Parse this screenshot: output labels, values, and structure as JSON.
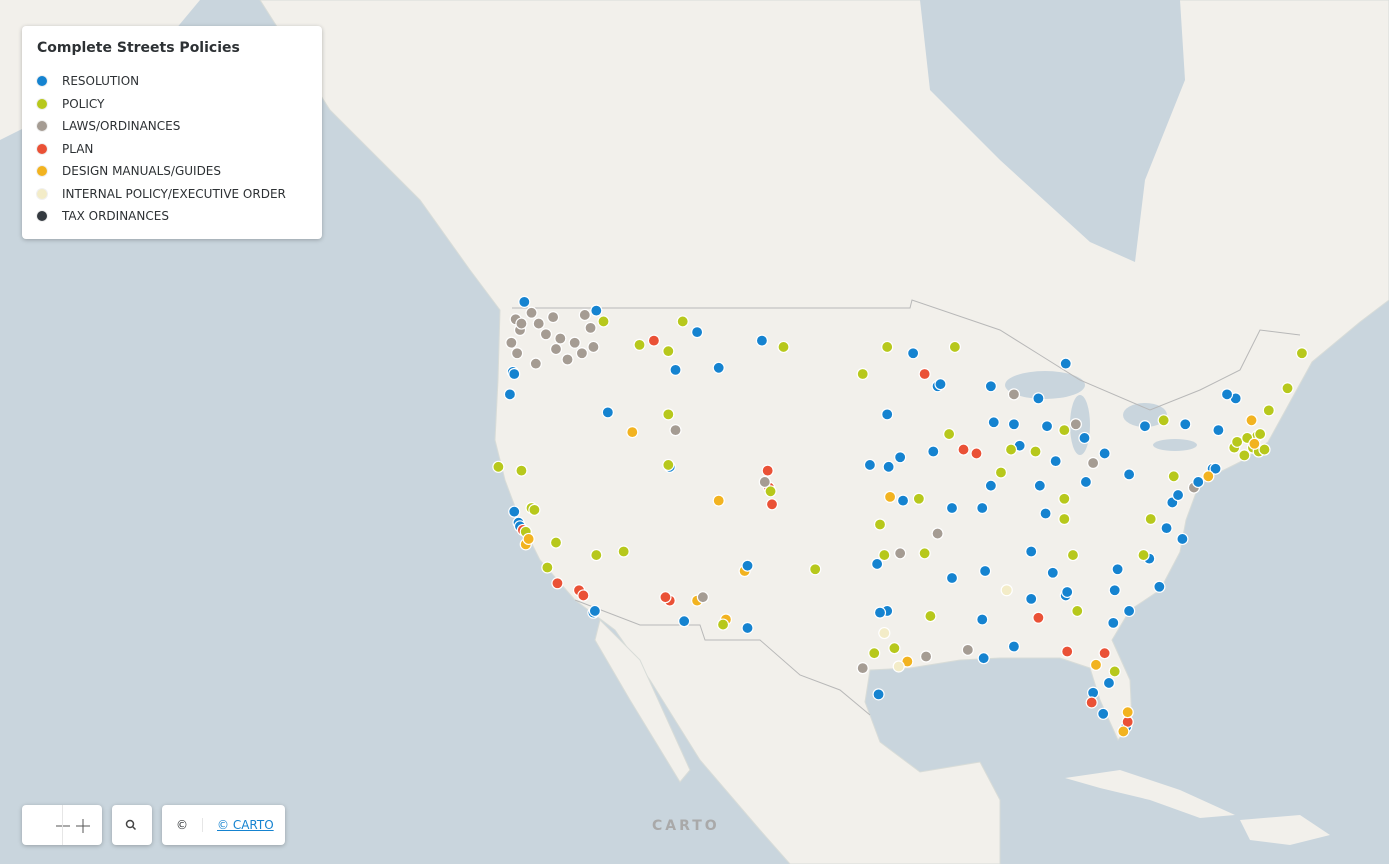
{
  "legend": {
    "title": "Complete Streets Policies",
    "items": [
      {
        "label": "RESOLUTION",
        "color": "#1583d0"
      },
      {
        "label": "POLICY",
        "color": "#b7c81c"
      },
      {
        "label": "LAWS/ORDINANCES",
        "color": "#a59c93"
      },
      {
        "label": "PLAN",
        "color": "#ea5136"
      },
      {
        "label": "DESIGN MANUALS/GUIDES",
        "color": "#f2b320"
      },
      {
        "label": "INTERNAL POLICY/EXECUTIVE ORDER",
        "color": "#f3ecc8"
      },
      {
        "label": "TAX ORDINANCES",
        "color": "#343a40"
      }
    ]
  },
  "points": [
    [
      -122.3,
      47.6,
      2
    ],
    [
      -122.6,
      48.1,
      2
    ],
    [
      -122.2,
      47.9,
      2
    ],
    [
      -121.5,
      48.4,
      2
    ],
    [
      -120.5,
      47.4,
      2
    ],
    [
      -119.5,
      47.2,
      2
    ],
    [
      -118.5,
      47.0,
      2
    ],
    [
      -117.4,
      47.7,
      2
    ],
    [
      -117.8,
      48.3,
      2
    ],
    [
      -120.0,
      48.2,
      2
    ],
    [
      -121.0,
      47.9,
      2
    ],
    [
      -122.9,
      47.0,
      2
    ],
    [
      -122.5,
      46.5,
      2
    ],
    [
      -121.2,
      46.0,
      2
    ],
    [
      -119.0,
      46.2,
      2
    ],
    [
      -118.0,
      46.5,
      2
    ],
    [
      -117.2,
      46.8,
      2
    ],
    [
      -119.8,
      46.7,
      2
    ],
    [
      -122.8,
      45.6,
      0
    ],
    [
      -117.0,
      48.5,
      0
    ],
    [
      -123.0,
      44.5,
      0
    ],
    [
      -122.7,
      45.5,
      0
    ],
    [
      -116.5,
      48.0,
      1
    ],
    [
      -122.0,
      48.9,
      0
    ],
    [
      -111.0,
      48.0,
      1
    ],
    [
      -111.5,
      45.7,
      0
    ],
    [
      -108.5,
      45.8,
      0
    ],
    [
      -110.0,
      47.5,
      0
    ],
    [
      -105.5,
      47.1,
      0
    ],
    [
      -104.0,
      46.8,
      1
    ],
    [
      -114.0,
      46.9,
      1
    ],
    [
      -112.0,
      46.6,
      1
    ],
    [
      -113.0,
      47.1,
      3
    ],
    [
      -116.2,
      43.6,
      0
    ],
    [
      -114.5,
      42.6,
      4
    ],
    [
      -112.0,
      43.5,
      1
    ],
    [
      -111.5,
      42.7,
      2
    ],
    [
      -111.9,
      40.8,
      0
    ],
    [
      -112.0,
      40.9,
      1
    ],
    [
      -105.0,
      39.7,
      3
    ],
    [
      -104.8,
      38.8,
      3
    ],
    [
      -105.1,
      40.6,
      3
    ],
    [
      -104.9,
      39.5,
      1
    ],
    [
      -105.3,
      40.0,
      2
    ],
    [
      -108.5,
      39.0,
      4
    ],
    [
      -106.7,
      35.1,
      4
    ],
    [
      -106.5,
      35.4,
      0
    ],
    [
      -110.0,
      33.4,
      4
    ],
    [
      -109.6,
      33.6,
      2
    ],
    [
      -111.9,
      33.4,
      3
    ],
    [
      -112.2,
      33.6,
      3
    ],
    [
      -110.9,
      32.2,
      0
    ],
    [
      -108.0,
      32.3,
      4
    ],
    [
      -108.2,
      32.0,
      1
    ],
    [
      -106.5,
      31.8,
      0
    ],
    [
      -115.1,
      36.2,
      1
    ],
    [
      -117.0,
      36.0,
      1
    ],
    [
      -122.4,
      37.8,
      0
    ],
    [
      -122.3,
      37.6,
      0
    ],
    [
      -122.1,
      37.4,
      3
    ],
    [
      -121.9,
      37.3,
      1
    ],
    [
      -121.5,
      38.6,
      1
    ],
    [
      -121.3,
      38.5,
      1
    ],
    [
      -122.7,
      38.4,
      0
    ],
    [
      -121.9,
      36.6,
      4
    ],
    [
      -121.7,
      36.9,
      4
    ],
    [
      -119.8,
      36.7,
      1
    ],
    [
      -118.2,
      34.0,
      3
    ],
    [
      -117.9,
      33.7,
      3
    ],
    [
      -117.2,
      32.7,
      0
    ],
    [
      -117.1,
      32.8,
      0
    ],
    [
      -119.7,
      34.4,
      3
    ],
    [
      -120.4,
      35.3,
      1
    ],
    [
      -122.2,
      40.6,
      1
    ],
    [
      -123.8,
      40.8,
      1
    ],
    [
      -93.3,
      44.9,
      0
    ],
    [
      -93.1,
      45.0,
      0
    ],
    [
      -92.1,
      46.8,
      1
    ],
    [
      -95.0,
      46.5,
      0
    ],
    [
      -94.2,
      45.5,
      3
    ],
    [
      -96.8,
      46.8,
      1
    ],
    [
      -93.6,
      41.6,
      0
    ],
    [
      -91.5,
      41.7,
      3
    ],
    [
      -92.5,
      42.5,
      1
    ],
    [
      -95.9,
      41.3,
      0
    ],
    [
      -89.4,
      43.1,
      0
    ],
    [
      -88.0,
      43.0,
      0
    ],
    [
      -88.0,
      44.5,
      2
    ],
    [
      -89.6,
      44.9,
      0
    ],
    [
      -85.7,
      42.9,
      0
    ],
    [
      -83.1,
      42.3,
      0
    ],
    [
      -84.5,
      42.7,
      1
    ],
    [
      -86.3,
      44.3,
      0
    ],
    [
      -84.4,
      46.0,
      0
    ],
    [
      -83.7,
      43.0,
      2
    ],
    [
      -87.6,
      41.9,
      0
    ],
    [
      -88.2,
      41.7,
      1
    ],
    [
      -89.6,
      39.8,
      0
    ],
    [
      -88.9,
      40.5,
      1
    ],
    [
      -90.6,
      41.5,
      3
    ],
    [
      -86.2,
      39.8,
      0
    ],
    [
      -85.1,
      41.1,
      0
    ],
    [
      -86.5,
      41.6,
      1
    ],
    [
      -83.0,
      40.0,
      0
    ],
    [
      -81.7,
      41.5,
      0
    ],
    [
      -84.5,
      39.1,
      1
    ],
    [
      -82.5,
      41.0,
      2
    ],
    [
      -90.2,
      38.6,
      0
    ],
    [
      -94.6,
      39.1,
      1
    ],
    [
      -92.3,
      38.6,
      0
    ],
    [
      -93.3,
      37.2,
      2
    ],
    [
      -97.3,
      37.7,
      1
    ],
    [
      -95.7,
      39.0,
      0
    ],
    [
      -96.6,
      39.2,
      4
    ],
    [
      -96.7,
      40.8,
      0
    ],
    [
      -98.0,
      40.9,
      0
    ],
    [
      -96.8,
      43.5,
      0
    ],
    [
      -98.5,
      45.5,
      1
    ],
    [
      -97.5,
      35.5,
      0
    ],
    [
      -95.9,
      36.1,
      2
    ],
    [
      -97.0,
      36.0,
      1
    ],
    [
      -97.7,
      30.3,
      1
    ],
    [
      -96.8,
      32.8,
      0
    ],
    [
      -97.3,
      32.7,
      0
    ],
    [
      -95.4,
      29.8,
      4
    ],
    [
      -98.5,
      29.4,
      2
    ],
    [
      -97.4,
      27.8,
      0
    ],
    [
      -101.8,
      35.2,
      1
    ],
    [
      -96.3,
      30.6,
      1
    ],
    [
      -94.1,
      30.1,
      2
    ],
    [
      -92.3,
      34.7,
      0
    ],
    [
      -94.2,
      36.1,
      1
    ],
    [
      -86.8,
      36.2,
      0
    ],
    [
      -90.0,
      35.1,
      0
    ],
    [
      -85.3,
      35.0,
      0
    ],
    [
      -83.9,
      36.0,
      1
    ],
    [
      -85.8,
      38.3,
      0
    ],
    [
      -84.5,
      38.0,
      1
    ],
    [
      -90.1,
      30.0,
      0
    ],
    [
      -91.2,
      30.5,
      2
    ],
    [
      -93.8,
      32.5,
      1
    ],
    [
      -90.2,
      32.3,
      0
    ],
    [
      -86.8,
      33.5,
      0
    ],
    [
      -88.0,
      30.7,
      0
    ],
    [
      -86.3,
      32.4,
      3
    ],
    [
      -84.4,
      33.7,
      0
    ],
    [
      -84.3,
      33.9,
      0
    ],
    [
      -81.1,
      32.1,
      0
    ],
    [
      -83.6,
      32.8,
      1
    ],
    [
      -82.5,
      27.9,
      0
    ],
    [
      -81.4,
      28.5,
      0
    ],
    [
      -80.2,
      25.8,
      0
    ],
    [
      -80.1,
      26.1,
      3
    ],
    [
      -81.7,
      30.3,
      3
    ],
    [
      -84.3,
      30.4,
      3
    ],
    [
      -82.3,
      29.6,
      4
    ],
    [
      -82.6,
      27.3,
      3
    ],
    [
      -81.8,
      26.6,
      0
    ],
    [
      -80.4,
      25.5,
      4
    ],
    [
      -80.1,
      26.7,
      4
    ],
    [
      -81.0,
      29.2,
      1
    ],
    [
      -80.8,
      35.2,
      0
    ],
    [
      -78.6,
      35.8,
      0
    ],
    [
      -79.0,
      36.0,
      1
    ],
    [
      -77.9,
      34.2,
      0
    ],
    [
      -80.0,
      32.8,
      0
    ],
    [
      -81.0,
      34.0,
      0
    ],
    [
      -77.0,
      38.9,
      0
    ],
    [
      -76.6,
      39.3,
      0
    ],
    [
      -77.4,
      37.5,
      0
    ],
    [
      -76.3,
      36.9,
      0
    ],
    [
      -78.5,
      38.0,
      1
    ],
    [
      -75.5,
      39.7,
      2
    ],
    [
      -75.2,
      40.0,
      0
    ],
    [
      -80.0,
      40.4,
      0
    ],
    [
      -74.2,
      40.7,
      0
    ],
    [
      -74.0,
      40.7,
      0
    ],
    [
      -74.5,
      40.3,
      4
    ],
    [
      -73.8,
      42.7,
      0
    ],
    [
      -76.1,
      43.0,
      0
    ],
    [
      -77.6,
      43.2,
      1
    ],
    [
      -78.9,
      42.9,
      0
    ],
    [
      -76.9,
      40.3,
      1
    ],
    [
      -71.1,
      42.4,
      1
    ],
    [
      -71.4,
      41.8,
      1
    ],
    [
      -72.7,
      41.8,
      1
    ],
    [
      -72.5,
      42.1,
      1
    ],
    [
      -71.8,
      42.3,
      1
    ],
    [
      -70.9,
      42.5,
      1
    ],
    [
      -71.0,
      41.6,
      1
    ],
    [
      -72.0,
      41.4,
      1
    ],
    [
      -70.3,
      43.7,
      1
    ],
    [
      -69.0,
      44.8,
      1
    ],
    [
      -72.6,
      44.3,
      0
    ],
    [
      -71.5,
      43.2,
      4
    ],
    [
      -68.0,
      46.5,
      1
    ],
    [
      -70.6,
      41.7,
      1
    ],
    [
      -71.3,
      42.0,
      4
    ],
    [
      -73.2,
      44.5,
      0
    ],
    [
      -97.0,
      31.5,
      5
    ],
    [
      -96.0,
      29.5,
      5
    ],
    [
      -88.5,
      34.0,
      5
    ]
  ],
  "watermark": "CARTO",
  "attribution": {
    "icon": "©",
    "link": "© CARTO"
  }
}
